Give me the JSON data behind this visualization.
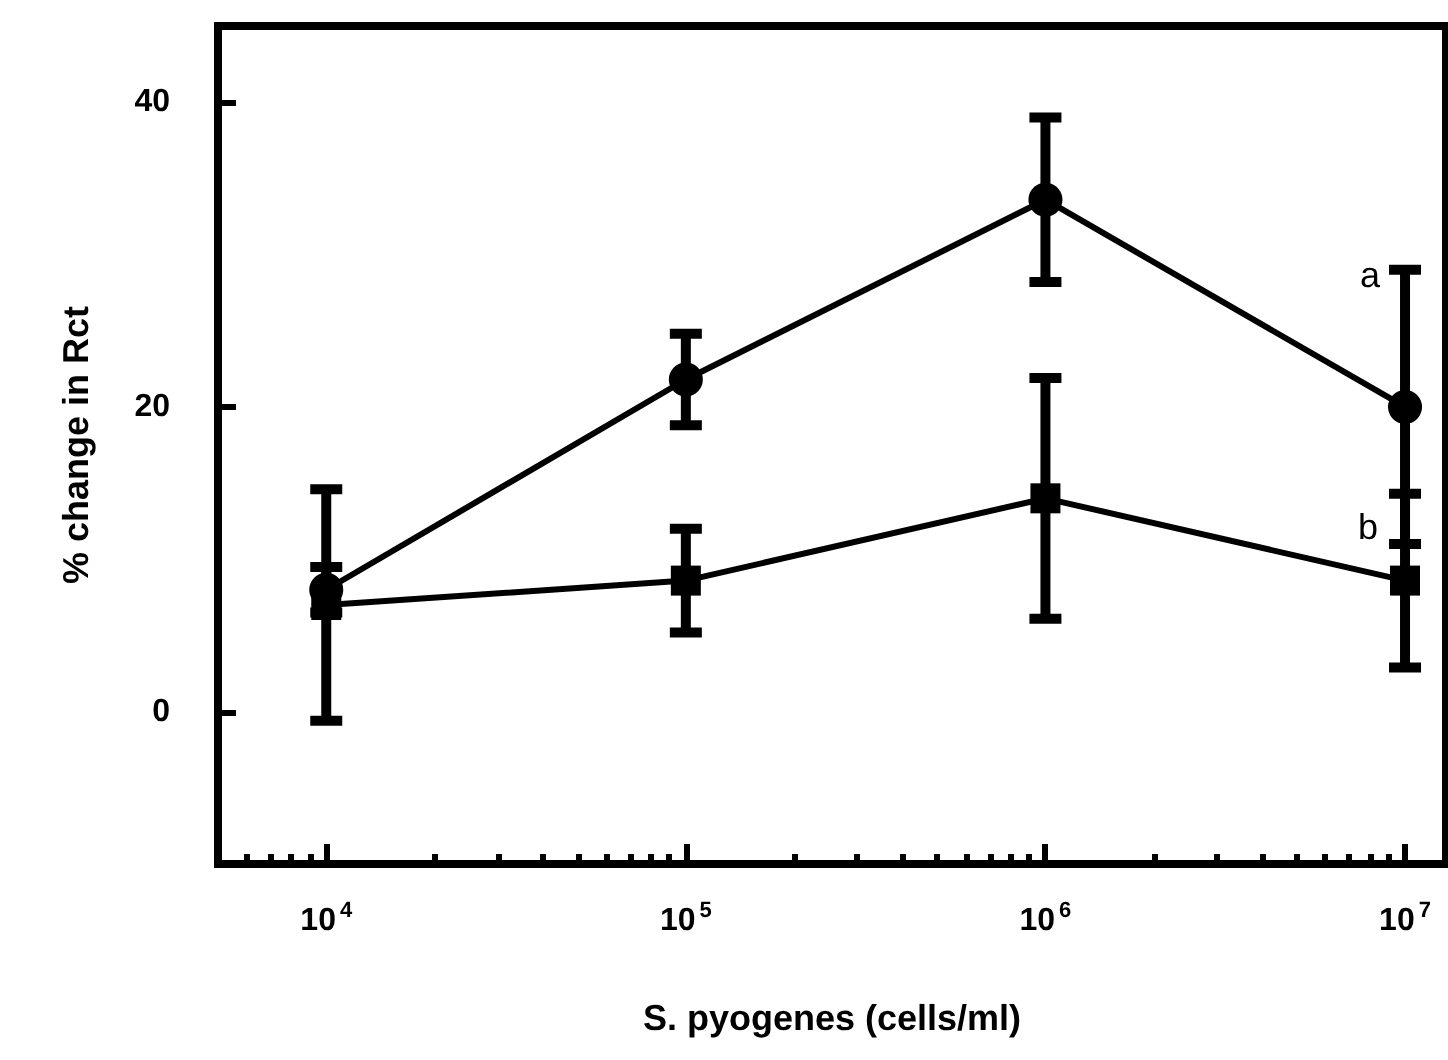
{
  "chart_data": {
    "type": "line",
    "xlabel": "S. pyogenes (cells/ml)",
    "ylabel": "% change in Rct",
    "log": "x",
    "x": [
      10000,
      100000,
      1000000,
      10000000
    ],
    "series": [
      {
        "name": "a",
        "color": "#000000",
        "marker": "circle",
        "values": [
          8,
          21.8,
          33.6,
          20
        ],
        "errors": [
          1.5,
          3,
          5.4,
          9
        ]
      },
      {
        "name": "b",
        "color": "#000000",
        "marker": "square",
        "values": [
          7,
          8.6,
          14,
          8.6
        ],
        "errors": [
          7.6,
          3.4,
          7.9,
          5.7
        ]
      }
    ],
    "xlim": [
      5000,
      13000000
    ],
    "xticks": [
      {
        "value": 10000,
        "label": "10$^{4}$"
      },
      {
        "value": 100000,
        "label": "10$^{5}$"
      },
      {
        "value": 1000000,
        "label": "10$^{6}$"
      },
      {
        "value": 10000000,
        "label": "10$^{7}$"
      }
    ],
    "ylim": [
      -10,
      45
    ],
    "yticks": [
      0,
      20,
      40
    ],
    "grid": false,
    "legend": false,
    "line_style": "solid"
  }
}
